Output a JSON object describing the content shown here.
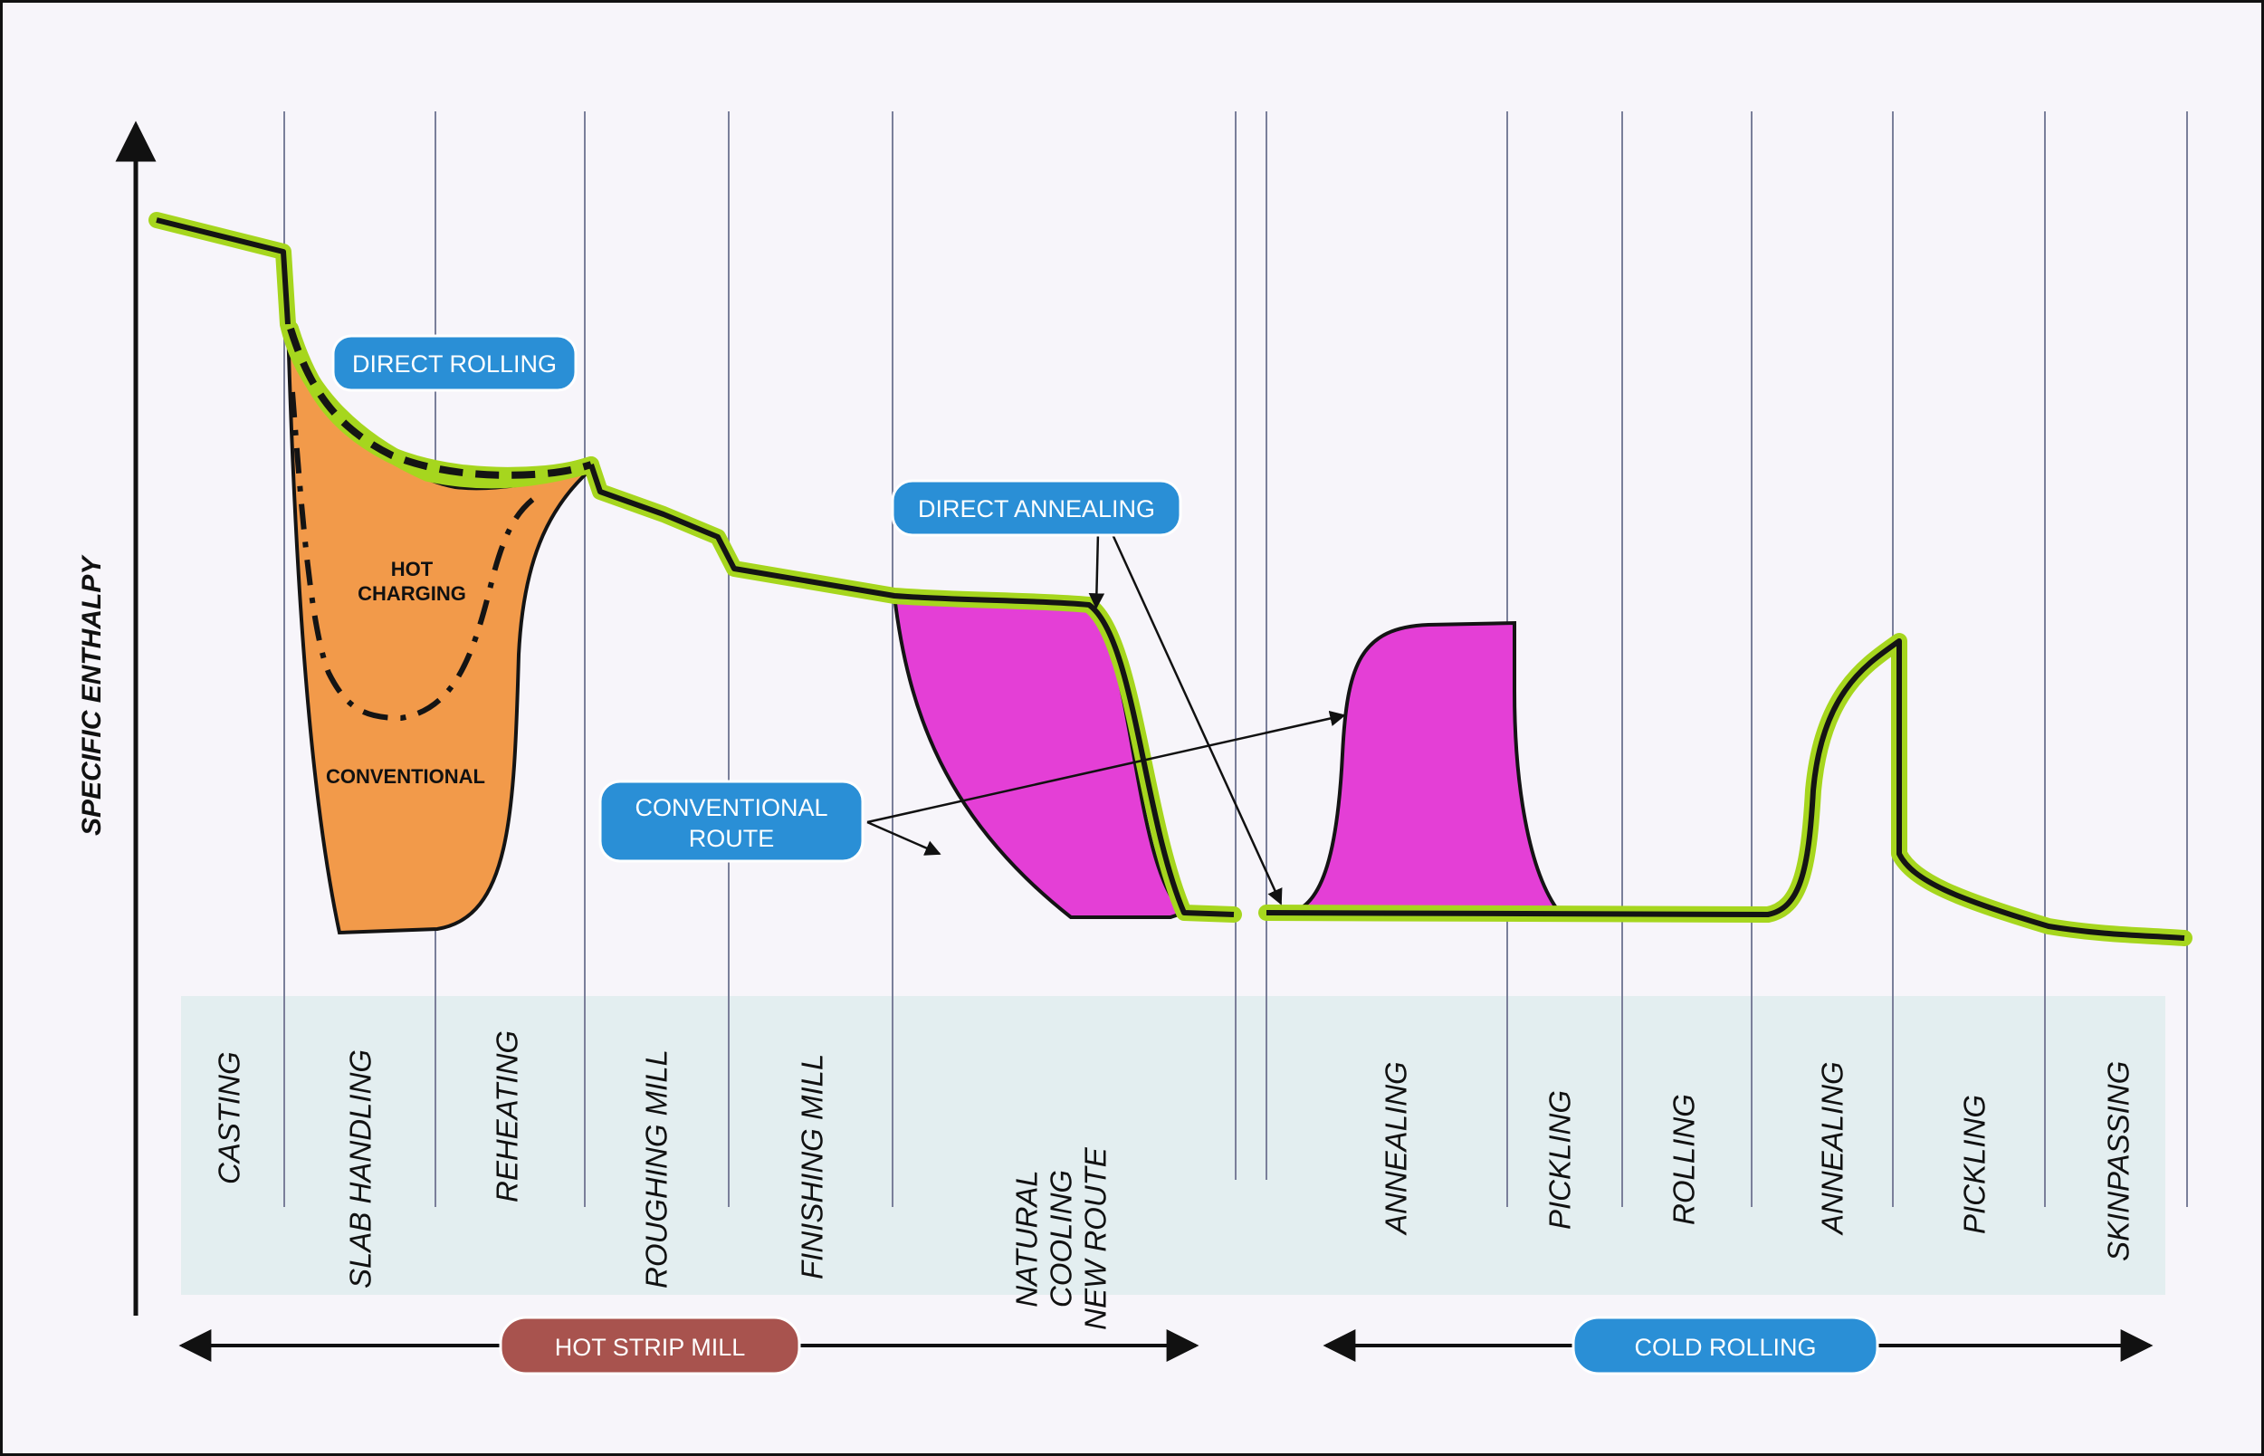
{
  "diagram": {
    "y_axis_label": "SPECIFIC ENTHALPY",
    "callouts": {
      "direct_rolling": "DIRECT ROLLING",
      "direct_annealing": "DIRECT ANNEALING",
      "conventional_route_line1": "CONVENTIONAL",
      "conventional_route_line2": "ROUTE"
    },
    "area_labels": {
      "hot_line1": "HOT",
      "hot_line2": "CHARGING",
      "conventional": "CONVENTIONAL"
    },
    "stages": [
      {
        "lines": [
          "CASTING"
        ]
      },
      {
        "lines": [
          "SLAB HANDLING"
        ]
      },
      {
        "lines": [
          "REHEATING"
        ]
      },
      {
        "lines": [
          "ROUGHING MILL"
        ]
      },
      {
        "lines": [
          "FINISHING MILL"
        ]
      },
      {
        "lines": [
          "NATURAL",
          "COOLING",
          "NEW ROUTE"
        ]
      },
      {
        "lines": [
          "ANNEALING"
        ]
      },
      {
        "lines": [
          "PICKLING"
        ]
      },
      {
        "lines": [
          "ROLLING"
        ]
      },
      {
        "lines": [
          "ANNEALING"
        ]
      },
      {
        "lines": [
          "PICKLING"
        ]
      },
      {
        "lines": [
          "SKINPASSING"
        ]
      }
    ],
    "groups": {
      "hot_strip_mill": "HOT STRIP MILL",
      "cold_rolling": "COLD ROLLING"
    },
    "colors": {
      "path_highlight": "#a6d61e",
      "path_line": "#141414",
      "conventional_area": "#f29a4a",
      "annealing_area": "#e43fd6",
      "callout_blue": "#2a8fd6",
      "hot_strip_pill": "#a8534e",
      "stage_band": "#e3eef0"
    }
  }
}
